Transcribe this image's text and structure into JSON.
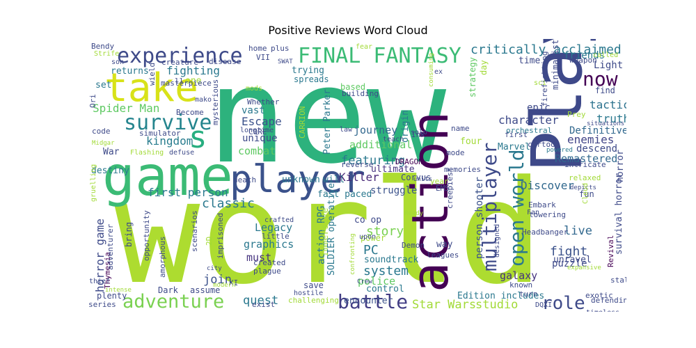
{
  "chart_data": {
    "type": "wordcloud",
    "title": "Positive Reviews Word Cloud",
    "words": [
      {
        "text": "new",
        "color": "#2db27d"
      },
      {
        "text": "world",
        "color": "#addc30"
      },
      {
        "text": "game",
        "color": "#3bbb75"
      },
      {
        "text": "Play",
        "color": "#3e4989"
      },
      {
        "text": "action",
        "color": "#440154"
      },
      {
        "text": "player",
        "color": "#3b528b"
      },
      {
        "text": "take",
        "color": "#d8e219"
      },
      {
        "text": "s",
        "color": "#28ae80"
      },
      {
        "text": "experience",
        "color": "#3e4a89"
      },
      {
        "text": "FINAL FANTASY",
        "color": "#3bbb75"
      },
      {
        "text": "survive",
        "color": "#25858e"
      },
      {
        "text": "adventure",
        "color": "#7ad151"
      },
      {
        "text": "battle",
        "color": "#433e85"
      },
      {
        "text": "multiplayer",
        "color": "#3e4a89"
      },
      {
        "text": "open world",
        "color": "#2a788e"
      },
      {
        "text": "now",
        "color": "#440154"
      },
      {
        "text": "critically acclaimed",
        "color": "#2a788e"
      },
      {
        "text": "role",
        "color": "#3e4a89"
      },
      {
        "text": "classic",
        "color": "#2a788e"
      },
      {
        "text": "Spider Man",
        "color": "#5ec962"
      },
      {
        "text": "kingdom",
        "color": "#287c8e"
      },
      {
        "text": "first person",
        "color": "#2a788e"
      },
      {
        "text": "Escape",
        "color": "#3b528b"
      },
      {
        "text": "journey",
        "color": "#31688e"
      },
      {
        "text": "featuring",
        "color": "#2a788e"
      },
      {
        "text": "Killer",
        "color": "#482878"
      },
      {
        "text": "Discover",
        "color": "#31688e"
      },
      {
        "text": "character",
        "color": "#3e4a89"
      },
      {
        "text": "enemies",
        "color": "#414487"
      },
      {
        "text": "tactical",
        "color": "#2c728e"
      },
      {
        "text": "truth",
        "color": "#2a788e"
      },
      {
        "text": "fighting",
        "color": "#2a788e"
      },
      {
        "text": "story",
        "color": "#7ad151"
      },
      {
        "text": "system",
        "color": "#2a788e"
      },
      {
        "text": "PC",
        "color": "#2a788e"
      },
      {
        "text": "horror game",
        "color": "#3e4a89"
      },
      {
        "text": "fight",
        "color": "#3b528b"
      },
      {
        "text": "live",
        "color": "#31688e"
      },
      {
        "text": "galaxy",
        "color": "#46337f"
      },
      {
        "text": "Star Wars",
        "color": "#a2da37"
      },
      {
        "text": "studio",
        "color": "#a2da37"
      },
      {
        "text": "quest",
        "color": "#2a788e"
      },
      {
        "text": "join",
        "color": "#3b528b"
      },
      {
        "text": "combat",
        "color": "#5ec962"
      },
      {
        "text": "additional",
        "color": "#5ec962"
      },
      {
        "text": "Remastered",
        "color": "#31688e"
      },
      {
        "text": "Definitive",
        "color": "#31688e"
      },
      {
        "text": "descend",
        "color": "#3e4a89"
      },
      {
        "text": "epic",
        "color": "#3e4a89"
      },
      {
        "text": "Light",
        "color": "#3e4a89"
      },
      {
        "text": "friends",
        "color": "#2a788e"
      },
      {
        "text": "graphics",
        "color": "#2a788e"
      },
      {
        "text": "Legacy",
        "color": "#2a788e"
      },
      {
        "text": "must",
        "color": "#46337f"
      },
      {
        "text": "police",
        "color": "#5ec962"
      },
      {
        "text": "control",
        "color": "#2a788e"
      },
      {
        "text": "Edition includes",
        "color": "#2a788e"
      },
      {
        "text": "action RPG",
        "color": "#2a788e"
      },
      {
        "text": "fast paced",
        "color": "#2a788e"
      },
      {
        "text": "struggle",
        "color": "#3b528b"
      },
      {
        "text": "person shooter",
        "color": "#3b528b"
      },
      {
        "text": "Peter Parker",
        "color": "#2a788e"
      },
      {
        "text": "unique",
        "color": "#3e4a89"
      },
      {
        "text": "vast",
        "color": "#2a788e"
      },
      {
        "text": "set",
        "color": "#2a788e"
      },
      {
        "text": "one",
        "color": "#a2da37"
      },
      {
        "text": "returns",
        "color": "#2a788e"
      },
      {
        "text": "War",
        "color": "#3e4a89"
      },
      {
        "text": "destiny",
        "color": "#2a788e"
      },
      {
        "text": "unknown",
        "color": "#2a788e"
      },
      {
        "text": "will",
        "color": "#2a788e"
      },
      {
        "text": "Marvel",
        "color": "#2a788e"
      },
      {
        "text": "four",
        "color": "#a2da37"
      },
      {
        "text": "ultimate",
        "color": "#46337f"
      },
      {
        "text": "soundtrack",
        "color": "#2a788e"
      },
      {
        "text": "immersive",
        "color": "#a2da37"
      },
      {
        "text": "SOLDIER operative",
        "color": "#2a788e"
      },
      {
        "text": "co op",
        "color": "#3e4a89"
      },
      {
        "text": "encounter",
        "color": "#3b528b"
      },
      {
        "text": "time",
        "color": "#3e4a89"
      },
      {
        "text": "CORE",
        "color": "#3e4a89"
      },
      {
        "text": "Whether",
        "color": "#3e4a89"
      },
      {
        "text": "mods",
        "color": "#a2da37"
      },
      {
        "text": "based",
        "color": "#5ec962"
      },
      {
        "text": "origin",
        "color": "#2a788e"
      },
      {
        "text": "building",
        "color": "#3e4a89"
      },
      {
        "text": "strategy",
        "color": "#5ec962"
      },
      {
        "text": "day",
        "color": "#a2da37"
      },
      {
        "text": "home",
        "color": "#3e4a89"
      },
      {
        "text": "plus",
        "color": "#3e4a89"
      },
      {
        "text": "VII",
        "color": "#3e4a89"
      },
      {
        "text": "disease",
        "color": "#3e4a89"
      },
      {
        "text": "creature",
        "color": "#3e4a89"
      },
      {
        "text": "trying",
        "color": "#2a788e"
      },
      {
        "text": "spreads",
        "color": "#2a788e"
      },
      {
        "text": "fear",
        "color": "#a2da37"
      },
      {
        "text": "SWAT",
        "color": "#3e4a89"
      },
      {
        "text": "simulator",
        "color": "#3e4a89"
      },
      {
        "text": "code",
        "color": "#3e4a89"
      },
      {
        "text": "Midgar",
        "color": "#a2da37"
      },
      {
        "text": "Flashing",
        "color": "#a2da37"
      },
      {
        "text": "defuse",
        "color": "#3e4a89"
      },
      {
        "text": "longtime",
        "color": "#3e4a89"
      },
      {
        "text": "DRAGON",
        "color": "#440154"
      },
      {
        "text": "Corvus",
        "color": "#3e4a89"
      },
      {
        "text": "mode",
        "color": "#3e4a89"
      },
      {
        "text": "Ink",
        "color": "#3e4a89"
      },
      {
        "text": "solo",
        "color": "#3e4a89"
      },
      {
        "text": "teach",
        "color": "#3e4a89"
      },
      {
        "text": "law",
        "color": "#3e4a89"
      },
      {
        "text": "CARRION",
        "color": "#a2da37"
      },
      {
        "text": "memories",
        "color": "#3e4a89"
      },
      {
        "text": "name",
        "color": "#3e4a89"
      },
      {
        "text": "first",
        "color": "#3e4a89"
      },
      {
        "text": "cartoon",
        "color": "#3e4a89"
      },
      {
        "text": "powered",
        "color": "#2a788e"
      },
      {
        "text": "Prey",
        "color": "#a2da37"
      },
      {
        "text": "situations",
        "color": "#3e4a89"
      },
      {
        "text": "intricate",
        "color": "#3e4a89"
      },
      {
        "text": "horror",
        "color": "#3e4a89"
      },
      {
        "text": "survival horror",
        "color": "#3e4a89"
      },
      {
        "text": "Revival",
        "color": "#440154"
      },
      {
        "text": "stalking",
        "color": "#3e4a89"
      },
      {
        "text": "defending",
        "color": "#3e4a89"
      },
      {
        "text": "timeless",
        "color": "#3e4a89"
      },
      {
        "text": "exotic",
        "color": "#3e4a89"
      },
      {
        "text": "known",
        "color": "#3e4a89"
      },
      {
        "text": "turn",
        "color": "#3e4a89"
      },
      {
        "text": "DQXI",
        "color": "#3e4a89"
      },
      {
        "text": "unravel",
        "color": "#3e4a89"
      },
      {
        "text": "puzzle",
        "color": "#3e4a89"
      },
      {
        "text": "expansive",
        "color": "#a2da37"
      },
      {
        "text": "Headbanger",
        "color": "#3e4a89"
      },
      {
        "text": "towering",
        "color": "#3e4a89"
      },
      {
        "text": "Embark",
        "color": "#3e4a89"
      },
      {
        "text": "Fan",
        "color": "#3e4a89"
      },
      {
        "text": "fun",
        "color": "#3e4a89"
      },
      {
        "text": "relaxed",
        "color": "#a2da37"
      },
      {
        "text": "depicts",
        "color": "#3e4a89"
      },
      {
        "text": "Cloud",
        "color": "#a2da37"
      },
      {
        "text": "find",
        "color": "#3e4a89"
      },
      {
        "text": "weapon",
        "color": "#3e4a89"
      },
      {
        "text": "called",
        "color": "#a2da37"
      },
      {
        "text": "minimalist",
        "color": "#3e4a89"
      },
      {
        "text": "firefighting",
        "color": "#3e4a89"
      },
      {
        "text": "sci",
        "color": "#a2da37"
      },
      {
        "text": "orchestral",
        "color": "#2a788e"
      },
      {
        "text": "designed",
        "color": "#3e4a89"
      },
      {
        "text": "way",
        "color": "#3e4a89"
      },
      {
        "text": "creepiest",
        "color": "#3e4a89"
      },
      {
        "text": "leagues",
        "color": "#3e4a89"
      },
      {
        "text": "Demon",
        "color": "#3e4a89"
      },
      {
        "text": "power",
        "color": "#a2da37"
      },
      {
        "text": "upon",
        "color": "#3e4a89"
      },
      {
        "text": "confronting",
        "color": "#a2da37"
      },
      {
        "text": "Crew",
        "color": "#3e4a89"
      },
      {
        "text": "EMS",
        "color": "#3e4a89"
      },
      {
        "text": "Ready",
        "color": "#a2da37"
      },
      {
        "text": "year",
        "color": "#a2da37"
      },
      {
        "text": "units",
        "color": "#3e4a89"
      },
      {
        "text": "reverse",
        "color": "#3e4a89"
      },
      {
        "text": "consuming",
        "color": "#a2da37"
      },
      {
        "text": "ex",
        "color": "#3e4a89"
      },
      {
        "text": "crafted",
        "color": "#3e4a89"
      },
      {
        "text": "little",
        "color": "#3e4a89"
      },
      {
        "text": "imprisoned",
        "color": "#3e4a89"
      },
      {
        "text": "2D",
        "color": "#a2da37"
      },
      {
        "text": "XI",
        "color": "#3e4a89"
      },
      {
        "text": "created",
        "color": "#3e4a89"
      },
      {
        "text": "plague",
        "color": "#3e4a89"
      },
      {
        "text": "save",
        "color": "#3e4a89"
      },
      {
        "text": "hostile",
        "color": "#3e4a89"
      },
      {
        "text": "challenging",
        "color": "#a2da37"
      },
      {
        "text": "exist",
        "color": "#3e4a89"
      },
      {
        "text": "modern",
        "color": "#a2da37"
      },
      {
        "text": "city",
        "color": "#3e4a89"
      },
      {
        "text": "assume",
        "color": "#3e4a89"
      },
      {
        "text": "Dark",
        "color": "#3e4a89"
      },
      {
        "text": "plenty",
        "color": "#3e4a89"
      },
      {
        "text": "series",
        "color": "#3e4a89"
      },
      {
        "text": "intense",
        "color": "#a2da37"
      },
      {
        "text": "Thymesia",
        "color": "#440154"
      },
      {
        "text": "adventurer",
        "color": "#3e4a89"
      },
      {
        "text": "thief",
        "color": "#3e4a89"
      },
      {
        "text": "amorphous",
        "color": "#3e4a89"
      },
      {
        "text": "opportunity",
        "color": "#3e4a89"
      },
      {
        "text": "scenarios",
        "color": "#3e4a89"
      },
      {
        "text": "bring",
        "color": "#3e4a89"
      },
      {
        "text": "gruelling",
        "color": "#a2da37"
      },
      {
        "text": "death",
        "color": "#3e4a89"
      },
      {
        "text": "mysterious",
        "color": "#3e4a89"
      },
      {
        "text": "masterpiece",
        "color": "#3e4a89"
      },
      {
        "text": "wield",
        "color": "#3e4a89"
      },
      {
        "text": "Become",
        "color": "#3e4a89"
      },
      {
        "text": "mako",
        "color": "#3e4a89"
      },
      {
        "text": "ll",
        "color": "#3e4a89"
      },
      {
        "text": "Ori",
        "color": "#3e4a89"
      },
      {
        "text": "son",
        "color": "#3e4a89"
      },
      {
        "text": "Strife",
        "color": "#a2da37"
      },
      {
        "text": "Bendy",
        "color": "#3e4a89"
      }
    ]
  }
}
